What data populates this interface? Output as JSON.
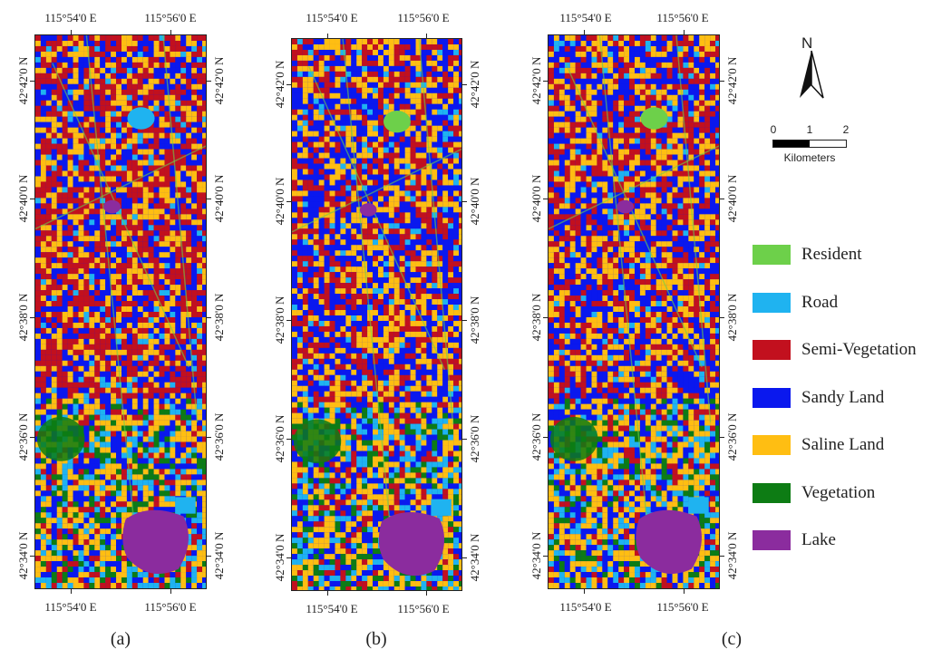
{
  "panels": [
    {
      "caption": "(a)",
      "top_labels": [
        "115°54'0 E",
        "115°56'0 E"
      ],
      "bottom_labels": [
        "115°54'0 E",
        "115°56'0 E"
      ],
      "left_labels": [
        "42°42'0 N",
        "42°40'0 N",
        "42°38'0 N",
        "42°36'0 N",
        "42°34'0 N"
      ],
      "right_labels": [
        "42°42'0 N",
        "42°40'0 N",
        "42°38'0 N",
        "42°36'0 N",
        "42°34'0 N"
      ],
      "dominant_classes": [
        "Semi-Vegetation",
        "Sandy Land",
        "Saline Land"
      ]
    },
    {
      "caption": "(b)",
      "top_labels": [
        "115°54'0 E",
        "115°56'0 E"
      ],
      "bottom_labels": [
        "115°54'0 E",
        "115°56'0 E"
      ],
      "left_labels": [
        "42°42'0 N",
        "42°40'0 N",
        "42°38'0 N",
        "42°36'0 N",
        "42°34'0 N"
      ],
      "right_labels": [
        "42°42'0 N",
        "42°40'0 N",
        "42°38'0 N",
        "42°36'0 N",
        "42°34'0 N"
      ],
      "dominant_classes": [
        "Sandy Land",
        "Semi-Vegetation",
        "Saline Land"
      ]
    },
    {
      "caption": "(c)",
      "top_labels": [
        "115°54'0 E",
        "115°56'0 E"
      ],
      "bottom_labels": [
        "115°54'0 E",
        "115°56'0 E"
      ],
      "left_labels": [
        "42°42'0 N",
        "42°40'0 N",
        "42°38'0 N",
        "42°36'0 N",
        "42°34'0 N"
      ],
      "right_labels": [
        "42°42'0 N",
        "42°40'0 N",
        "42°38'0 N",
        "42°36'0 N",
        "42°34'0 N"
      ],
      "dominant_classes": [
        "Sandy Land",
        "Semi-Vegetation",
        "Saline Land"
      ]
    }
  ],
  "north_arrow": {
    "label": "N"
  },
  "scale_bar": {
    "ticks": [
      "0",
      "1",
      "2"
    ],
    "unit": "Kilometers"
  },
  "legend": [
    {
      "label": "Resident",
      "color": "#6dd04a"
    },
    {
      "label": "Road",
      "color": "#1fb3f0"
    },
    {
      "label": "Semi-Vegetation",
      "color": "#c2101e"
    },
    {
      "label": "Sandy Land",
      "color": "#0a18ee"
    },
    {
      "label": "Saline Land",
      "color": "#ffbe12"
    },
    {
      "label": "Vegetation",
      "color": "#0d7c14"
    },
    {
      "label": "Lake",
      "color": "#8b2c9e"
    }
  ]
}
